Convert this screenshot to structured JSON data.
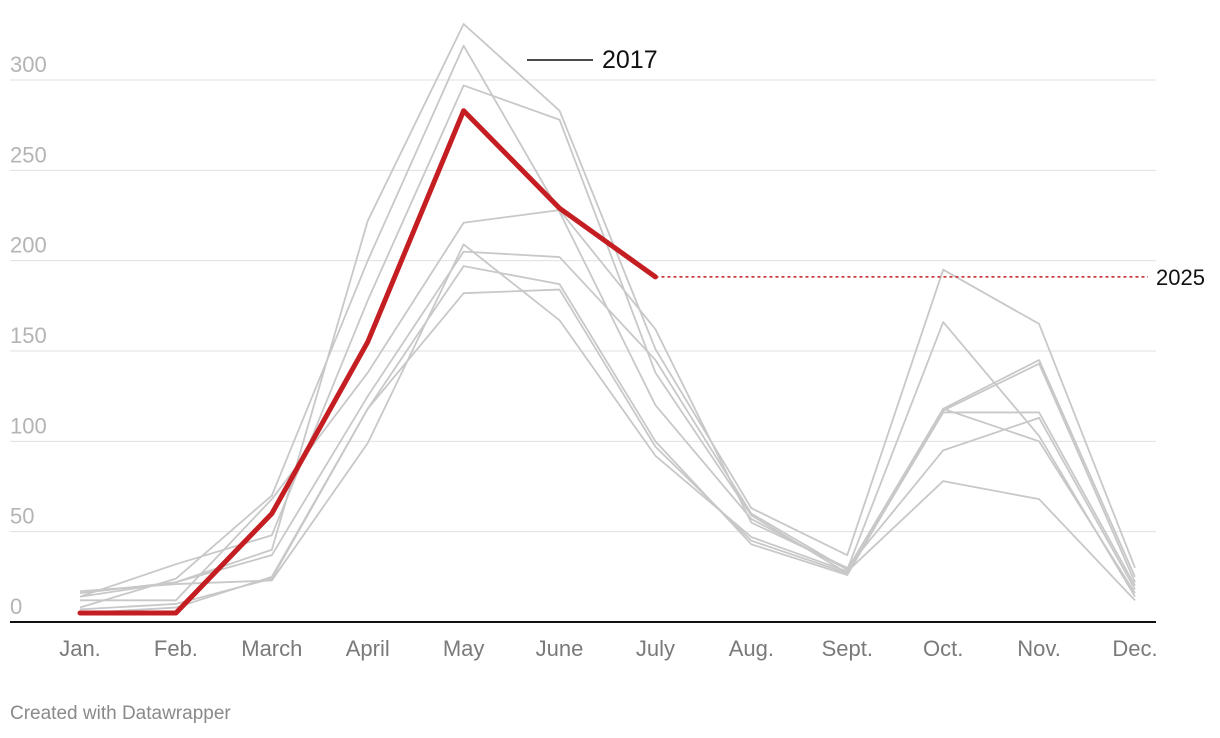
{
  "chart_data": {
    "type": "line",
    "categories": [
      "Jan.",
      "Feb.",
      "March",
      "April",
      "May",
      "June",
      "July",
      "Aug.",
      "Sept.",
      "Oct.",
      "Nov.",
      "Dec."
    ],
    "ylim": [
      0,
      330
    ],
    "yticks": [
      0,
      50,
      100,
      150,
      200,
      250,
      300
    ],
    "grid": true,
    "background_series": [
      {
        "values": [
          16,
          22,
          40,
          222,
          331,
          283,
          151,
          63,
          37,
          195,
          165,
          30
        ]
      },
      {
        "values": [
          8,
          24,
          70,
          200,
          319,
          227,
          120,
          57,
          29,
          118,
          145,
          25
        ]
      },
      {
        "values": [
          14,
          32,
          48,
          178,
          297,
          278,
          138,
          59,
          27,
          116,
          116,
          20
        ]
      },
      {
        "values": [
          12,
          12,
          68,
          138,
          221,
          228,
          162,
          55,
          30,
          95,
          113,
          18
        ]
      },
      {
        "values": [
          14,
          22,
          37,
          125,
          205,
          202,
          145,
          60,
          29,
          166,
          103,
          14
        ]
      },
      {
        "values": [
          17,
          21,
          23,
          99,
          209,
          167,
          92,
          47,
          28,
          78,
          68,
          12
        ]
      },
      {
        "values": [
          5,
          8,
          25,
          118,
          197,
          187,
          100,
          43,
          26,
          118,
          100,
          16
        ]
      },
      {
        "values": [
          7,
          10,
          24,
          118,
          182,
          184,
          97,
          45,
          27,
          117,
          143,
          22
        ]
      }
    ],
    "highlight_series": {
      "name": "2025",
      "color": "#c41e22",
      "values": [
        5,
        5,
        60,
        155,
        283,
        229,
        191
      ],
      "reference_value": 191
    },
    "series_labels": {
      "top": "2017",
      "right": "2025"
    },
    "colors": {
      "background_line": "#c8c8c8",
      "grid": "#e0e0e0",
      "axis": "#111111"
    }
  },
  "footer": "Created with Datawrapper"
}
